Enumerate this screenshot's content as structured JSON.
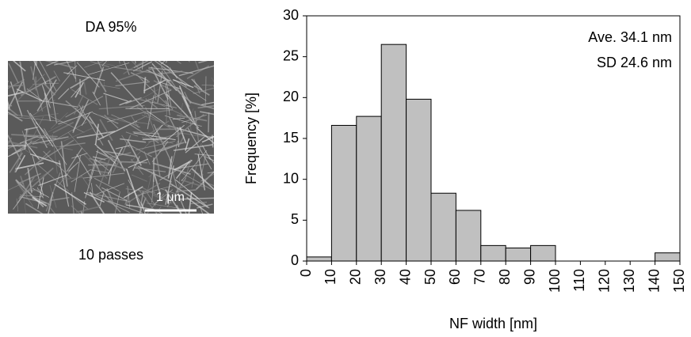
{
  "image_panel": {
    "title": "DA 95%",
    "caption": "10 passes",
    "scale_bar": "1 μm"
  },
  "chart_data": {
    "type": "histogram",
    "bins": [
      0,
      10,
      20,
      30,
      40,
      50,
      60,
      70,
      80,
      90,
      100,
      110,
      120,
      130,
      140,
      150
    ],
    "values": [
      0.5,
      16.6,
      17.7,
      26.5,
      19.8,
      8.3,
      6.2,
      1.9,
      1.6,
      1.9,
      0,
      0,
      0,
      0,
      1.0
    ],
    "color": "#c0c0c0",
    "xlim": [
      0,
      150
    ],
    "xticks": [
      0,
      10,
      20,
      30,
      40,
      50,
      60,
      70,
      80,
      90,
      100,
      110,
      120,
      130,
      140,
      150
    ],
    "ylim": [
      0,
      30
    ],
    "yticks": [
      0,
      5,
      10,
      15,
      20,
      25,
      30
    ],
    "xlabel": "NF width [nm]",
    "ylabel": "Frequency [%]",
    "annotations": [
      "Ave. 34.1 nm",
      "SD 24.6 nm"
    ]
  }
}
